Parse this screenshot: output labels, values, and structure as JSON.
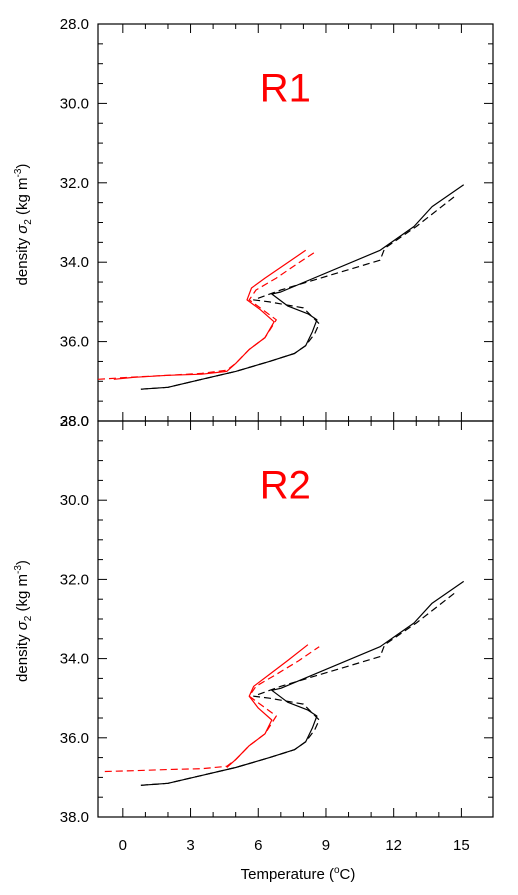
{
  "chart_data": {
    "type": "line",
    "xlabel": "Temperature (",
    "xlabel_sup": "o",
    "xlabel_suffix": "C)",
    "ylabel": "density",
    "ylabel_symbol": "σ",
    "ylabel_sub": "2",
    "ylabel_units": "(kg m",
    "ylabel_units_sup": "-3",
    "ylabel_units_end": ")",
    "xlim": [
      -1.1,
      16.4
    ],
    "ylim": [
      28.0,
      38.0
    ],
    "y_reversed": true,
    "xticks": [
      0,
      3,
      6,
      9,
      12,
      15
    ],
    "xtick_labels": [
      "0",
      "3",
      "6",
      "9",
      "12",
      "15"
    ],
    "yticks": [
      28,
      30,
      32,
      34,
      36,
      38
    ],
    "ytick_labels": [
      "28.0",
      "30.0",
      "32.0",
      "34.0",
      "36.0",
      "38.0"
    ],
    "colors": {
      "black": "#000000",
      "red": "#ff0000"
    },
    "panels": [
      {
        "title": "R1",
        "title_color": "#ff0000",
        "series": [
          {
            "color": "#000000",
            "dash": "solid",
            "x": [
              0.8,
              2.0,
              3.5,
              5.0,
              6.5,
              7.6,
              8.1,
              8.4,
              8.6,
              8.2,
              7.3,
              6.6,
              7.0,
              11.4,
              12.9,
              13.7,
              15.1
            ],
            "y": [
              37.2,
              37.15,
              36.95,
              36.75,
              36.5,
              36.3,
              36.1,
              35.75,
              35.45,
              35.3,
              35.1,
              34.8,
              34.75,
              33.7,
              33.1,
              32.6,
              32.05
            ]
          },
          {
            "color": "#000000",
            "dash": "dashed",
            "x": [
              0.8,
              2.0,
              3.5,
              5.0,
              6.5,
              7.6,
              8.1,
              8.5,
              8.7,
              8.0,
              6.5,
              5.8,
              7.0,
              11.4,
              11.6,
              13.0,
              14.8
            ],
            "y": [
              37.2,
              37.15,
              36.95,
              36.75,
              36.5,
              36.3,
              36.1,
              35.8,
              35.55,
              35.15,
              35.0,
              34.95,
              34.7,
              33.95,
              33.65,
              33.1,
              32.3
            ]
          },
          {
            "color": "#ff0000",
            "dash": "solid",
            "x": [
              -0.4,
              0.5,
              2.0,
              3.5,
              4.6,
              5.0,
              5.6,
              6.3,
              6.7,
              6.1,
              5.5,
              5.7,
              6.3,
              7.2,
              8.1
            ],
            "y": [
              36.95,
              36.9,
              36.85,
              36.82,
              36.75,
              36.55,
              36.2,
              35.9,
              35.5,
              35.2,
              34.95,
              34.65,
              34.4,
              34.05,
              33.7
            ]
          },
          {
            "color": "#ff0000",
            "dash": "dashed",
            "x": [
              -1.1,
              0.3,
              2.0,
              3.5,
              4.6,
              5.0,
              5.6,
              6.3,
              6.8,
              6.2,
              5.6,
              5.9,
              6.8,
              7.7,
              8.5
            ],
            "y": [
              36.95,
              36.9,
              36.85,
              36.8,
              36.72,
              36.55,
              36.2,
              35.9,
              35.45,
              35.2,
              34.95,
              34.7,
              34.4,
              34.05,
              33.75
            ]
          }
        ]
      },
      {
        "title": "R2",
        "title_color": "#ff0000",
        "series": [
          {
            "color": "#000000",
            "dash": "solid",
            "x": [
              0.8,
              2.0,
              3.5,
              5.0,
              6.5,
              7.6,
              8.1,
              8.4,
              8.6,
              8.2,
              7.3,
              6.6,
              7.0,
              11.4,
              12.9,
              13.7,
              15.1
            ],
            "y": [
              37.2,
              37.15,
              36.95,
              36.75,
              36.5,
              36.3,
              36.1,
              35.75,
              35.45,
              35.3,
              35.1,
              34.8,
              34.75,
              33.7,
              33.1,
              32.6,
              32.05
            ]
          },
          {
            "color": "#000000",
            "dash": "dashed",
            "x": [
              0.8,
              2.0,
              3.5,
              5.0,
              6.5,
              7.6,
              8.1,
              8.5,
              8.7,
              8.0,
              6.5,
              5.8,
              7.0,
              11.4,
              11.6,
              13.0,
              14.8
            ],
            "y": [
              37.2,
              37.15,
              36.95,
              36.75,
              36.5,
              36.3,
              36.1,
              35.8,
              35.55,
              35.15,
              35.0,
              34.95,
              34.7,
              33.95,
              33.65,
              33.1,
              32.3
            ]
          },
          {
            "color": "#ff0000",
            "dash": "solid",
            "x": [
              4.6,
              5.0,
              5.6,
              6.3,
              6.6,
              6.0,
              5.6,
              5.8,
              6.5,
              7.3,
              8.2
            ],
            "y": [
              36.75,
              36.55,
              36.2,
              35.9,
              35.55,
              35.25,
              34.95,
              34.7,
              34.4,
              34.05,
              33.65
            ]
          },
          {
            "color": "#ff0000",
            "dash": "dashed",
            "x": [
              -0.8,
              0.5,
              2.0,
              3.5,
              4.6,
              5.0,
              5.6,
              6.3,
              6.8,
              6.2,
              5.6,
              5.9,
              6.8,
              7.8,
              8.7
            ],
            "y": [
              36.85,
              36.83,
              36.8,
              36.78,
              36.72,
              36.55,
              36.2,
              35.9,
              35.45,
              35.2,
              34.95,
              34.7,
              34.4,
              34.05,
              33.7
            ]
          }
        ]
      }
    ]
  }
}
